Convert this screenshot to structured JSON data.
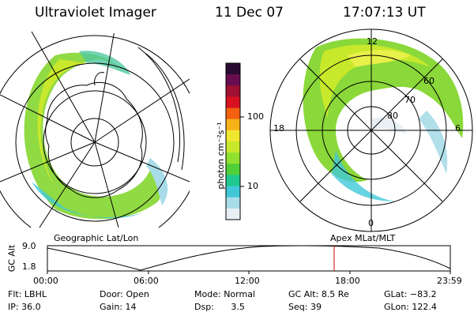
{
  "header": {
    "instrument": "Ultraviolet Imager",
    "date": "11 Dec 07",
    "time": "17:07:13 UT"
  },
  "colorbar": {
    "unit_label": "photon cm⁻²s⁻¹",
    "ticks": [
      "100",
      "10"
    ],
    "colors": [
      "#2b0a33",
      "#6a0d50",
      "#a01030",
      "#d81020",
      "#f26010",
      "#f7b21a",
      "#f0e830",
      "#c8e82c",
      "#90e030",
      "#50d038",
      "#20c890",
      "#40c8d8",
      "#a8dce8",
      "#e8f0f4"
    ]
  },
  "left_map": {
    "caption": "Geographic Lat/Lon"
  },
  "right_map": {
    "caption": "Apex MLat/MLT",
    "mlt_labels": {
      "top": "12",
      "left": "18",
      "right": "6",
      "bottom": "0"
    },
    "mlat_labels": [
      "60",
      "70",
      "80"
    ]
  },
  "altitude_plot": {
    "ylabel": "GC Alt",
    "y_ticks": [
      "9.0",
      "1.8"
    ],
    "x_ticks": [
      "00:00",
      "06:00",
      "12:00",
      "18:00",
      "23:59"
    ],
    "current_marker_color": "#cc0000"
  },
  "status": {
    "flt": {
      "label": "Flt:",
      "value": "LBHL"
    },
    "door": {
      "label": "Door:",
      "value": "Open"
    },
    "mode": {
      "label": "Mode:",
      "value": "Normal"
    },
    "gcalt": {
      "label": "GC Alt:",
      "value": "8.5 Re"
    },
    "glat": {
      "label": "GLat:",
      "value": "−83.2"
    },
    "ip": {
      "label": "IP:",
      "value": "36.0"
    },
    "gain": {
      "label": "Gain:",
      "value": "14"
    },
    "dsp": {
      "label": "Dsp:",
      "value": "3.5"
    },
    "seq": {
      "label": "Seq:",
      "value": "39"
    },
    "glon": {
      "label": "GLon:",
      "value": "122.4"
    }
  }
}
